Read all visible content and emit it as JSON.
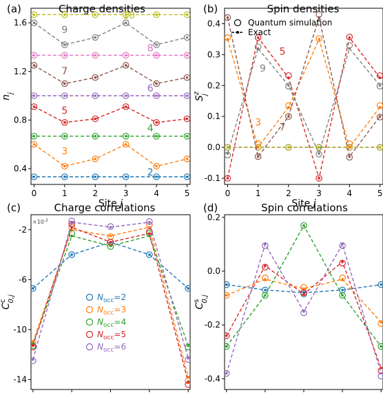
{
  "markers": {
    "quantum": "Quantum simulation",
    "exact": "Exact"
  },
  "chart_data": [
    {
      "id": "a",
      "type": "line",
      "panel_label": "(a)",
      "title": "Charge densities",
      "xlabel": "Site",
      "xlabel_var": "j",
      "ylabel": "n",
      "ylabel_sub": "j",
      "x": [
        0,
        1,
        2,
        3,
        4,
        5
      ],
      "xlim": [
        -0.1,
        5.1
      ],
      "ylim": [
        0.27,
        1.72
      ],
      "yticks": [
        "0.4",
        "0.8",
        "1.2",
        "1.6"
      ],
      "ytick_values": [
        0.4,
        0.8,
        1.2,
        1.6
      ],
      "series": [
        {
          "name": "2",
          "color": "#1f77b4",
          "exact": [
            0.333,
            0.333,
            0.333,
            0.333,
            0.333,
            0.333
          ],
          "quantum": [
            0.333,
            0.333,
            0.333,
            0.333,
            0.333,
            0.333
          ]
        },
        {
          "name": "3",
          "color": "#ff7f0e",
          "exact": [
            0.6,
            0.42,
            0.48,
            0.6,
            0.42,
            0.48
          ],
          "quantum": [
            0.6,
            0.42,
            0.48,
            0.6,
            0.42,
            0.48
          ]
        },
        {
          "name": "4",
          "color": "#2ca02c",
          "exact": [
            0.667,
            0.667,
            0.667,
            0.667,
            0.667,
            0.667
          ],
          "quantum": [
            0.667,
            0.667,
            0.667,
            0.667,
            0.667,
            0.667
          ]
        },
        {
          "name": "5",
          "color": "#d62728",
          "exact": [
            0.91,
            0.78,
            0.81,
            0.91,
            0.78,
            0.81
          ],
          "quantum": [
            0.91,
            0.78,
            0.81,
            0.91,
            0.78,
            0.81
          ]
        },
        {
          "name": "6",
          "color": "#9467bd",
          "exact": [
            1.0,
            1.0,
            1.0,
            1.0,
            1.0,
            1.0
          ],
          "quantum": [
            1.0,
            1.0,
            1.0,
            1.0,
            1.0,
            1.0
          ]
        },
        {
          "name": "7",
          "color": "#8c564b",
          "exact": [
            1.25,
            1.1,
            1.15,
            1.25,
            1.1,
            1.15
          ],
          "quantum": [
            1.25,
            1.1,
            1.15,
            1.25,
            1.1,
            1.15
          ]
        },
        {
          "name": "8",
          "color": "#e377c2",
          "exact": [
            1.333,
            1.333,
            1.333,
            1.333,
            1.333,
            1.333
          ],
          "quantum": [
            1.333,
            1.333,
            1.333,
            1.333,
            1.333,
            1.333
          ]
        },
        {
          "name": "9",
          "color": "#7f7f7f",
          "exact": [
            1.6,
            1.42,
            1.48,
            1.6,
            1.42,
            1.48
          ],
          "quantum": [
            1.6,
            1.42,
            1.48,
            1.6,
            1.42,
            1.48
          ]
        },
        {
          "name": "10",
          "color": "#bcbd22",
          "exact": [
            1.667,
            1.667,
            1.667,
            1.667,
            1.667,
            1.667
          ],
          "quantum": [
            1.667,
            1.667,
            1.667,
            1.667,
            1.667,
            1.667
          ]
        }
      ],
      "labels": [
        {
          "text": "2",
          "x": 3.8,
          "y": 0.345
        },
        {
          "text": "3",
          "x": 1.0,
          "y": 0.515
        },
        {
          "text": "4",
          "x": 3.8,
          "y": 0.705
        },
        {
          "text": "5",
          "x": 1.0,
          "y": 0.85
        },
        {
          "text": "6",
          "x": 3.8,
          "y": 1.035
        },
        {
          "text": "7",
          "x": 1.0,
          "y": 1.175
        },
        {
          "text": "8",
          "x": 3.8,
          "y": 1.365
        },
        {
          "text": "9",
          "x": 1.0,
          "y": 1.515
        },
        {
          "text": "10",
          "x": 3.1,
          "y": 1.635
        }
      ]
    },
    {
      "id": "b",
      "type": "line",
      "panel_label": "(b)",
      "title": "Spin densities",
      "xlabel": "Site",
      "xlabel_var": "j",
      "ylabel": "S",
      "ylabel_sub": "j",
      "ylabel_sup": "z",
      "x": [
        0,
        1,
        2,
        3,
        4,
        5
      ],
      "xlim": [
        -0.1,
        5.1
      ],
      "ylim": [
        -0.12,
        0.45
      ],
      "yticks": [
        "-0.1",
        "0.0",
        "0.1",
        "0.2",
        "0.3",
        "0.4"
      ],
      "ytick_values": [
        -0.1,
        0.0,
        0.1,
        0.2,
        0.3,
        0.4
      ],
      "legend": {
        "position": "top-right",
        "entries": [
          "Quantum simulation",
          "Exact"
        ]
      },
      "series": [
        {
          "name": "3",
          "color": "#ff7f0e",
          "exact": [
            0.35,
            0.0,
            0.13,
            0.35,
            0.0,
            0.13
          ],
          "quantum": [
            0.355,
            0.012,
            0.135,
            0.352,
            0.012,
            0.135
          ]
        },
        {
          "name": "5",
          "color": "#d62728",
          "exact": [
            -0.1,
            0.355,
            0.225,
            -0.1,
            0.355,
            0.225
          ],
          "quantum": [
            -0.1,
            0.355,
            0.232,
            -0.1,
            0.357,
            0.232
          ]
        },
        {
          "name": "7",
          "color": "#8c564b",
          "exact": [
            0.42,
            -0.03,
            0.1,
            0.42,
            -0.03,
            0.1
          ],
          "quantum": [
            0.42,
            -0.03,
            0.1,
            0.43,
            -0.032,
            0.098
          ]
        },
        {
          "name": "9",
          "color": "#7f7f7f",
          "exact": [
            -0.02,
            0.32,
            0.2,
            -0.02,
            0.32,
            0.2
          ],
          "quantum": [
            -0.025,
            0.325,
            0.198,
            -0.022,
            0.33,
            0.198
          ]
        },
        {
          "name": "2",
          "color": "#1f77b4",
          "exact": [
            0,
            0,
            0,
            0,
            0,
            0
          ],
          "quantum": [
            0,
            0,
            0,
            0,
            0,
            0
          ]
        },
        {
          "name": "4",
          "color": "#2ca02c",
          "exact": [
            0,
            0,
            0,
            0,
            0,
            0
          ],
          "quantum": [
            0,
            0,
            0,
            0,
            0,
            0
          ]
        },
        {
          "name": "6",
          "color": "#9467bd",
          "exact": [
            0,
            0,
            0,
            0,
            0,
            0
          ],
          "quantum": [
            0,
            0,
            0,
            0,
            0,
            0
          ]
        },
        {
          "name": "8",
          "color": "#e377c2",
          "exact": [
            0,
            0,
            0,
            0,
            0,
            0
          ],
          "quantum": [
            0,
            0,
            0,
            0,
            0,
            0
          ]
        },
        {
          "name": "10",
          "color": "#bcbd22",
          "exact": [
            0,
            0,
            0,
            0,
            0,
            0
          ],
          "quantum": [
            0,
            0,
            0,
            0,
            0,
            0
          ]
        }
      ],
      "labels": [
        {
          "text": "5",
          "x": 1.8,
          "y": 0.3,
          "color": "#d62728"
        },
        {
          "text": "9",
          "x": 1.15,
          "y": 0.245,
          "color": "#7f7f7f"
        },
        {
          "text": "3",
          "x": 1.0,
          "y": 0.07,
          "color": "#ff7f0e"
        },
        {
          "text": "7",
          "x": 1.8,
          "y": 0.055,
          "color": "#8c564b"
        }
      ]
    },
    {
      "id": "c",
      "type": "line",
      "panel_label": "(c)",
      "title": "Charge correlations",
      "xlabel": "Site",
      "xlabel_var": "j",
      "ylabel": "C",
      "ylabel_sub": "0,j",
      "ylabel_sup": "c",
      "scale_note": "×10",
      "scale_exp": "-2",
      "x": [
        1,
        2,
        3,
        4,
        5
      ],
      "xlim": [
        0.95,
        5.05
      ],
      "ylim": [
        -14.8,
        -0.8
      ],
      "yticks": [
        "-2",
        "-6",
        "-10",
        "-14"
      ],
      "ytick_values": [
        -2,
        -6,
        -10,
        -14
      ],
      "legend": {
        "position": "lower-left",
        "prefix": "N",
        "subscript": "occ"
      },
      "series": [
        {
          "name": "2",
          "color": "#1f77b4",
          "exact": [
            -6.7,
            -4.0,
            -3.0,
            -4.0,
            -6.7
          ],
          "quantum": [
            -6.7,
            -4.0,
            -3.0,
            -4.0,
            -6.7
          ]
        },
        {
          "name": "3",
          "color": "#ff7f0e",
          "exact": [
            -11.0,
            -2.0,
            -2.5,
            -1.8,
            -13.8
          ],
          "quantum": [
            -11.1,
            -1.8,
            -2.55,
            -1.6,
            -14.1
          ]
        },
        {
          "name": "4",
          "color": "#2ca02c",
          "exact": [
            -11.2,
            -2.5,
            -3.3,
            -2.5,
            -11.3
          ],
          "quantum": [
            -11.3,
            -2.3,
            -3.35,
            -2.3,
            -11.4
          ]
        },
        {
          "name": "5",
          "color": "#d62728",
          "exact": [
            -11.3,
            -1.8,
            -3.0,
            -2.3,
            -14.2
          ],
          "quantum": [
            -11.4,
            -1.55,
            -3.0,
            -2.15,
            -14.4
          ]
        },
        {
          "name": "6",
          "color": "#9467bd",
          "exact": [
            -12.4,
            -1.4,
            -1.8,
            -1.4,
            -12.3
          ],
          "quantum": [
            -12.5,
            -1.3,
            -1.75,
            -1.35,
            -12.4
          ]
        }
      ]
    },
    {
      "id": "d",
      "type": "line",
      "panel_label": "(d)",
      "title": "Spin correlations",
      "xlabel": "Site",
      "xlabel_var": "j",
      "ylabel": "C",
      "ylabel_sub": "0,j",
      "ylabel_sup": "s",
      "x": [
        1,
        2,
        3,
        4,
        5
      ],
      "xlim": [
        0.95,
        5.05
      ],
      "ylim": [
        -0.44,
        0.21
      ],
      "yticks": [
        "-0.4",
        "-0.2",
        "0.0",
        "0.2"
      ],
      "ytick_values": [
        -0.4,
        -0.2,
        0.0,
        0.2
      ],
      "series": [
        {
          "name": "2",
          "color": "#1f77b4",
          "exact": [
            -0.05,
            -0.07,
            -0.08,
            -0.07,
            -0.05
          ],
          "quantum": [
            -0.05,
            -0.07,
            -0.085,
            -0.07,
            -0.05
          ]
        },
        {
          "name": "3",
          "color": "#ff7f0e",
          "exact": [
            -0.09,
            -0.03,
            -0.065,
            -0.03,
            -0.19
          ],
          "quantum": [
            -0.09,
            -0.025,
            -0.06,
            -0.025,
            -0.195
          ]
        },
        {
          "name": "4",
          "color": "#2ca02c",
          "exact": [
            -0.28,
            -0.09,
            0.17,
            -0.09,
            -0.28
          ],
          "quantum": [
            -0.28,
            -0.09,
            0.17,
            -0.09,
            -0.28
          ]
        },
        {
          "name": "5",
          "color": "#d62728",
          "exact": [
            -0.24,
            0.02,
            -0.085,
            0.035,
            -0.36
          ],
          "quantum": [
            -0.24,
            0.015,
            -0.08,
            0.03,
            -0.37
          ]
        },
        {
          "name": "6",
          "color": "#9467bd",
          "exact": [
            -0.38,
            0.1,
            -0.15,
            0.1,
            -0.38
          ],
          "quantum": [
            -0.38,
            0.095,
            -0.155,
            0.095,
            -0.39
          ]
        }
      ]
    }
  ]
}
